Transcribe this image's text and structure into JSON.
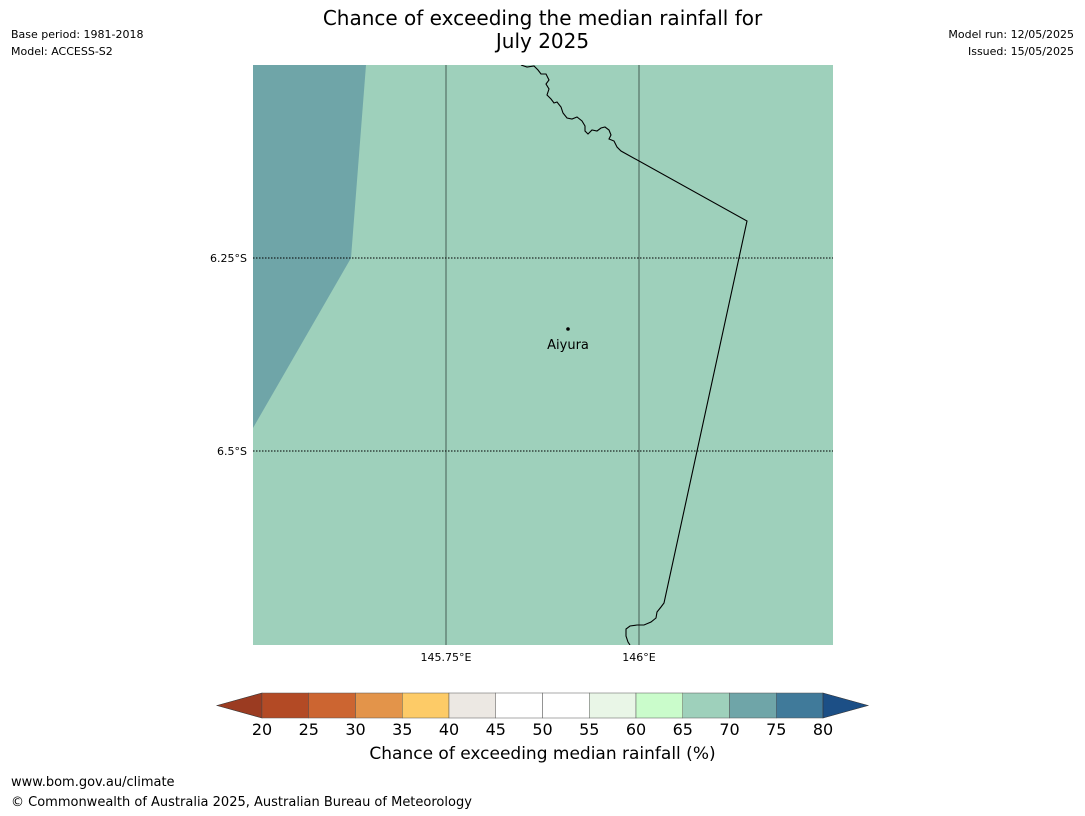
{
  "header": {
    "title_line1": "Chance of exceeding the median rainfall for",
    "title_line2": "July 2025",
    "base_period": "Base period: 1981-2018",
    "model": "Model: ACCESS-S2",
    "model_run": "Model run: 12/05/2025",
    "issued": "Issued: 15/05/2025"
  },
  "map": {
    "lat_labels": [
      "6.25°S",
      "6.5°S"
    ],
    "lon_labels": [
      "145.75°E",
      "146°E"
    ],
    "place_label": "Aiyura",
    "colors": {
      "band_65_70": "#9ed0bb",
      "band_70_75": "#6fa5a8",
      "coastline": "#000000",
      "gridline": "#000000"
    }
  },
  "colorbar": {
    "title": "Chance of exceeding median rainfall (%)",
    "tick_labels": [
      "20",
      "25",
      "30",
      "35",
      "40",
      "45",
      "50",
      "55",
      "60",
      "65",
      "70",
      "75",
      "80"
    ],
    "colors": [
      "#9b3b21",
      "#b34a25",
      "#cc6531",
      "#e3944a",
      "#fdcb67",
      "#ece8e3",
      "#ffffff",
      "#ffffff",
      "#e9f6e7",
      "#cafccb",
      "#9ed0bb",
      "#6fa5a8",
      "#407a9a",
      "#1c4f86"
    ]
  },
  "footer": {
    "url": "www.bom.gov.au/climate",
    "copyright": "© Commonwealth of Australia 2025, Australian Bureau of Meteorology"
  }
}
